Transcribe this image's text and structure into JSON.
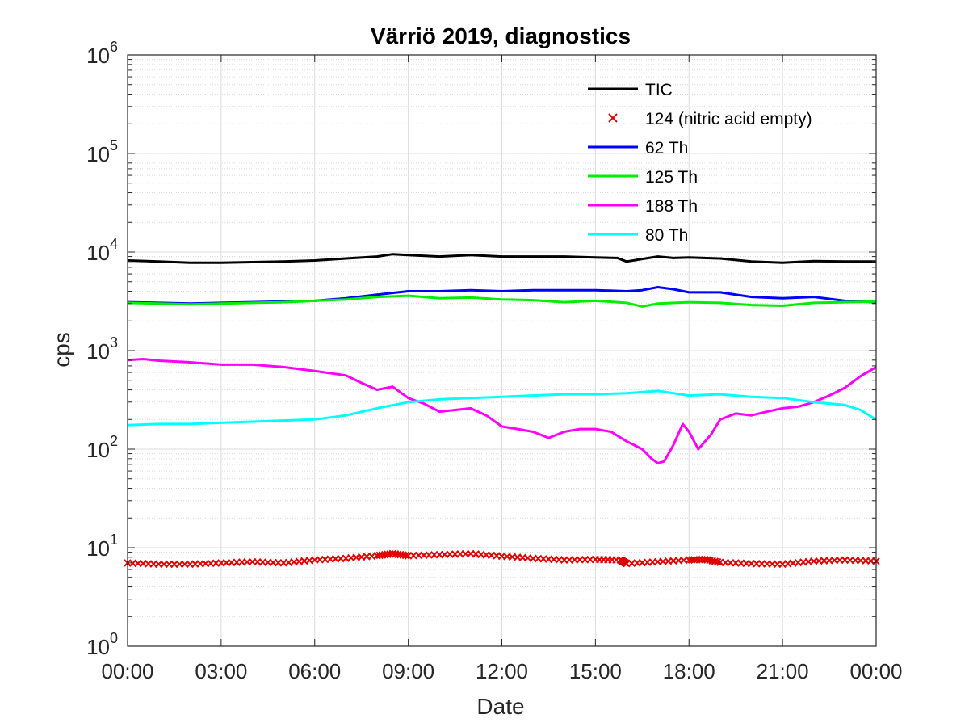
{
  "chart_data": {
    "type": "line",
    "title": "Värriö 2019, diagnostics",
    "xlabel": "Date",
    "ylabel": "cps",
    "yscale": "log",
    "xlim": [
      0,
      24
    ],
    "ylim": [
      1,
      1000000
    ],
    "grid": true,
    "minor_grid": true,
    "legend_position": "top-right",
    "x_ticks": [
      "00:00",
      "03:00",
      "06:00",
      "09:00",
      "12:00",
      "15:00",
      "18:00",
      "21:00",
      "00:00"
    ],
    "y_ticks": [
      {
        "base": "10",
        "exp": "0"
      },
      {
        "base": "10",
        "exp": "1"
      },
      {
        "base": "10",
        "exp": "2"
      },
      {
        "base": "10",
        "exp": "3"
      },
      {
        "base": "10",
        "exp": "4"
      },
      {
        "base": "10",
        "exp": "5"
      },
      {
        "base": "10",
        "exp": "6"
      }
    ],
    "series": [
      {
        "name": "TIC",
        "color": "#000000",
        "style": "line",
        "x": [
          0,
          1,
          2,
          3,
          4,
          5,
          6,
          7,
          8,
          8.5,
          9,
          10,
          11,
          12,
          13,
          14,
          15,
          15.7,
          16,
          16.5,
          17,
          17.5,
          18,
          19,
          20,
          21,
          22,
          23,
          24
        ],
        "y": [
          8200,
          8000,
          7800,
          7800,
          7900,
          8000,
          8200,
          8600,
          9000,
          9500,
          9300,
          9000,
          9300,
          9000,
          9000,
          9000,
          8800,
          8700,
          8000,
          8500,
          9000,
          8700,
          8800,
          8600,
          8000,
          7800,
          8100,
          8000,
          8000
        ]
      },
      {
        "name": "124 (nitric acid empty)",
        "color": "#e00000",
        "style": "marker",
        "x": [
          0,
          1,
          2,
          3,
          4,
          5,
          6,
          7,
          8,
          8.5,
          9,
          10,
          11,
          12,
          13,
          14,
          15,
          15.8,
          16,
          17,
          18,
          18.5,
          19,
          20,
          21,
          22,
          23,
          24
        ],
        "y": [
          7.0,
          6.8,
          6.8,
          7.0,
          7.2,
          7.0,
          7.5,
          7.8,
          8.3,
          8.7,
          8.3,
          8.5,
          8.7,
          8.2,
          7.8,
          7.5,
          7.6,
          7.5,
          6.9,
          7.2,
          7.5,
          7.6,
          7.1,
          6.9,
          6.8,
          7.3,
          7.5,
          7.3
        ]
      },
      {
        "name": "62 Th",
        "color": "#0000ff",
        "style": "line",
        "x": [
          0,
          1,
          2,
          3,
          4,
          5,
          6,
          7,
          8,
          9,
          10,
          11,
          12,
          13,
          14,
          15,
          16,
          16.5,
          17,
          17.5,
          18,
          19,
          20,
          21,
          22,
          23,
          24
        ],
        "y": [
          3100,
          3050,
          3000,
          3050,
          3100,
          3150,
          3200,
          3400,
          3700,
          4000,
          4000,
          4100,
          4000,
          4100,
          4100,
          4100,
          4000,
          4100,
          4400,
          4200,
          3900,
          3900,
          3500,
          3400,
          3500,
          3200,
          3100
        ]
      },
      {
        "name": "125 Th",
        "color": "#00ee00",
        "style": "line",
        "x": [
          0,
          1,
          2,
          3,
          4,
          5,
          6,
          7,
          8,
          9,
          10,
          11,
          12,
          13,
          14,
          15,
          16,
          16.5,
          17,
          18,
          19,
          20,
          21,
          22,
          23,
          24
        ],
        "y": [
          3050,
          3000,
          2950,
          3000,
          3050,
          3100,
          3200,
          3300,
          3500,
          3600,
          3400,
          3450,
          3300,
          3250,
          3100,
          3200,
          3050,
          2800,
          3000,
          3100,
          3050,
          2900,
          2850,
          3050,
          3100,
          3150
        ]
      },
      {
        "name": "188 Th",
        "color": "#ff00ff",
        "style": "line",
        "x": [
          0,
          0.5,
          1,
          2,
          3,
          4,
          5,
          6,
          7,
          7.5,
          8,
          8.5,
          9,
          9.5,
          10,
          10.5,
          11,
          11.5,
          12,
          12.5,
          13,
          13.5,
          14,
          14.5,
          15,
          15.5,
          16,
          16.5,
          16.8,
          17,
          17.2,
          17.5,
          17.8,
          18,
          18.3,
          18.7,
          19,
          19.5,
          20,
          20.5,
          21,
          21.5,
          22,
          22.5,
          23,
          23.5,
          24
        ],
        "y": [
          800,
          820,
          790,
          760,
          720,
          720,
          680,
          620,
          560,
          470,
          400,
          430,
          330,
          290,
          240,
          250,
          260,
          220,
          170,
          160,
          150,
          130,
          150,
          160,
          160,
          150,
          120,
          100,
          80,
          72,
          75,
          110,
          180,
          150,
          100,
          140,
          200,
          230,
          220,
          240,
          260,
          270,
          300,
          350,
          420,
          550,
          680
        ]
      },
      {
        "name": "80 Th",
        "color": "#00ffff",
        "style": "line",
        "x": [
          0,
          1,
          2,
          3,
          4,
          5,
          6,
          7,
          8,
          9,
          10,
          11,
          12,
          13,
          14,
          15,
          16,
          17,
          18,
          19,
          20,
          21,
          22,
          23,
          23.5,
          24
        ],
        "y": [
          175,
          180,
          180,
          185,
          190,
          195,
          200,
          220,
          260,
          300,
          320,
          330,
          340,
          350,
          360,
          360,
          370,
          390,
          350,
          360,
          340,
          330,
          300,
          280,
          250,
          200
        ]
      }
    ]
  }
}
